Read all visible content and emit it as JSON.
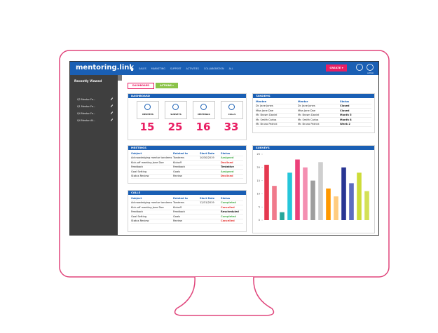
{
  "header": {
    "logo": "mentoring.link",
    "nav": [
      "SALES",
      "MARKETING",
      "SUPPORT",
      "ACTIVITIES",
      "COLLABORATION",
      "ALL"
    ],
    "create": "CREATE ▾",
    "user": "admin"
  },
  "sidebar": {
    "title": "Recently Viewed",
    "items": [
      "Q2 Mentor Fe...",
      "Q1 Mentor Fe...",
      "Q4 Mentor Fe...",
      "Q4 Mentor Ali..."
    ]
  },
  "toolbar": {
    "dashboard": "DASHBOARD",
    "actions": "ACTIONS ▾"
  },
  "dashboard": {
    "title": "DASHBOARD",
    "tiles": [
      {
        "label": "MENTEES",
        "value": 15
      },
      {
        "label": "SURVEYS",
        "value": 25
      },
      {
        "label": "MEETINGS",
        "value": 16
      },
      {
        "label": "CALLS",
        "value": 33
      }
    ]
  },
  "tandems": {
    "title": "TANDEMS",
    "columns": [
      "Mentee",
      "Mentor",
      "Status"
    ],
    "rows": [
      [
        "Dr. Jane Jones",
        "Dr. Jane Jones",
        "Closed"
      ],
      [
        "Miss Jane Doe",
        "Miss Jane Doe",
        "Closed"
      ],
      [
        "Mr. Brown Daniel",
        "Mr. Brown Daniel",
        "Month 5"
      ],
      [
        "Mr. Smith Carlos",
        "Mr. Smith Carlos",
        "Month 8"
      ],
      [
        "Mr. Bruno Patrick",
        "Mr. Bruno Patrick",
        "Week 2"
      ]
    ]
  },
  "meetings": {
    "title": "MEETINGS",
    "columns": [
      "Subject",
      "Related to",
      "Start Date",
      "Status"
    ],
    "rows": [
      [
        "Acknowledging mentor tandems",
        "Tandems",
        "10/30/2019",
        "Assigned"
      ],
      [
        "Kick-off meeting Jane Doe",
        "Kickoff",
        null,
        "Declined"
      ],
      [
        "Feedback",
        "Feedback",
        null,
        "Tentative"
      ],
      [
        "Goal Setting",
        "Goals",
        null,
        "Assigned"
      ],
      [
        "Status Review",
        "Review",
        null,
        "Declined"
      ]
    ]
  },
  "calls": {
    "title": "CALLS",
    "columns": [
      "Subject",
      "Related to",
      "Start Date",
      "Status"
    ],
    "rows": [
      [
        "Acknowledging mentor tandems",
        "Tandems",
        "12/31/2019",
        "Completed"
      ],
      [
        "Kick-off meeting Jane Doe",
        "Kickoff",
        null,
        "Cancelled"
      ],
      [
        "Feedback",
        "Feedback",
        null,
        "Rescheduled"
      ],
      [
        "Goal Setting",
        "Goals",
        null,
        "Completed"
      ],
      [
        "Status Review",
        "Review",
        null,
        "Cancelled"
      ]
    ]
  },
  "status_colors": {
    "Assigned": "#4caf50",
    "Declined": "#e53935",
    "Tentative": "#222222",
    "Completed": "#4caf50",
    "Cancelled": "#e53935",
    "Rescheduled": "#222222"
  },
  "chart_data": {
    "type": "bar",
    "title": "SURVEYS",
    "categories": [
      null,
      null,
      null,
      null,
      null,
      null,
      null,
      null,
      null,
      null,
      null,
      null,
      null,
      null
    ],
    "values": [
      21,
      13,
      3,
      18,
      23,
      20,
      15,
      22,
      12,
      9,
      20,
      14,
      18,
      11
    ],
    "colors": [
      "#e53950",
      "#f07a8c",
      "#26a69a",
      "#26c6da",
      "#ec407a",
      "#f48fb1",
      "#9e9e9e",
      "#cfcfcf",
      "#ff9800",
      "#ffcc80",
      "#283593",
      "#5c6bc0",
      "#cddc39",
      "#d4e157"
    ],
    "ylim": [
      0,
      25
    ],
    "yticks": [
      0,
      5,
      10,
      15,
      20,
      25
    ]
  }
}
